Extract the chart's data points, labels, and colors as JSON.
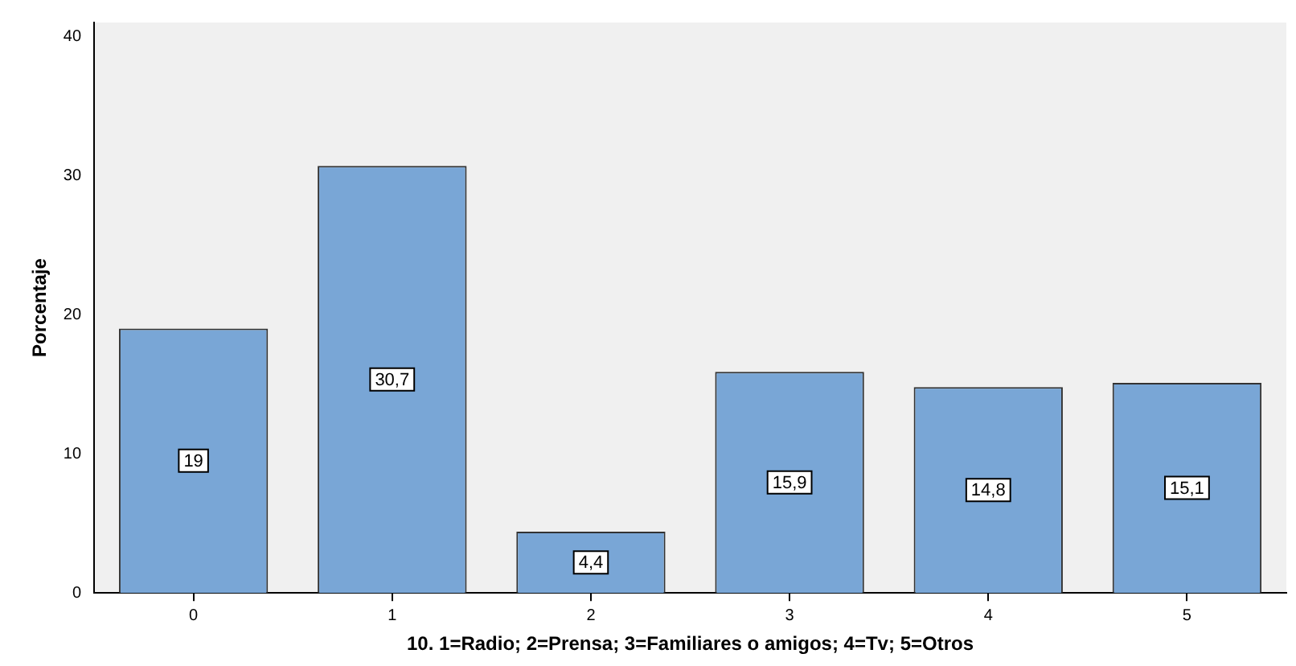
{
  "chart_data": {
    "type": "bar",
    "xlabel": "10. 1=Radio; 2=Prensa; 3=Familiares o amigos; 4=Tv; 5=Otros",
    "ylabel": "Porcentaje",
    "categories": [
      "0",
      "1",
      "2",
      "3",
      "4",
      "5"
    ],
    "values": [
      19,
      30.7,
      4.4,
      15.9,
      14.8,
      15.1
    ],
    "value_labels": [
      "19",
      "30,7",
      "4,4",
      "15,9",
      "14,8",
      "15,1"
    ],
    "color": "#79a6d6",
    "ylim": [
      0,
      41
    ],
    "yticks": [
      0,
      10,
      20,
      30,
      40
    ],
    "grid": false,
    "legend": false
  }
}
